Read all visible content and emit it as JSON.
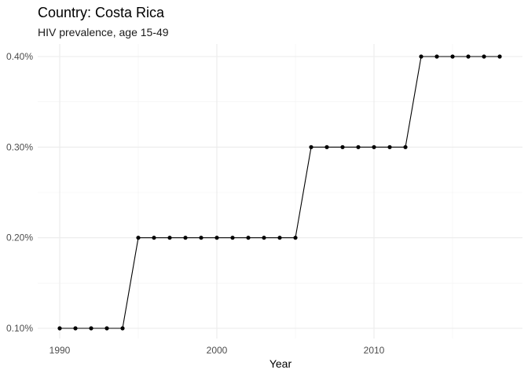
{
  "chart_data": {
    "type": "line",
    "title": "Country: Costa Rica",
    "subtitle": "HIV prevalence, age 15-49",
    "xlabel": "Year",
    "ylabel": "",
    "xlim": [
      1990,
      2018
    ],
    "ylim": [
      0.1,
      0.4
    ],
    "x_ticks": [
      1990,
      2000,
      2010
    ],
    "x_tick_labels": [
      "1990",
      "2000",
      "2010"
    ],
    "y_ticks": [
      0.1,
      0.2,
      0.3,
      0.4
    ],
    "y_tick_labels": [
      "0.10%",
      "0.20%",
      "0.30%",
      "0.40%"
    ],
    "grid": true,
    "series": [
      {
        "color": "#000000",
        "x": [
          1990,
          1991,
          1992,
          1993,
          1994,
          1995,
          1996,
          1997,
          1998,
          1999,
          2000,
          2001,
          2002,
          2003,
          2004,
          2005,
          2006,
          2007,
          2008,
          2009,
          2010,
          2011,
          2012,
          2013,
          2014,
          2015,
          2016,
          2017,
          2018
        ],
        "y": [
          0.1,
          0.1,
          0.1,
          0.1,
          0.1,
          0.2,
          0.2,
          0.2,
          0.2,
          0.2,
          0.2,
          0.2,
          0.2,
          0.2,
          0.2,
          0.2,
          0.3,
          0.3,
          0.3,
          0.3,
          0.3,
          0.3,
          0.3,
          0.4,
          0.4,
          0.4,
          0.4,
          0.4,
          0.4
        ]
      }
    ]
  }
}
